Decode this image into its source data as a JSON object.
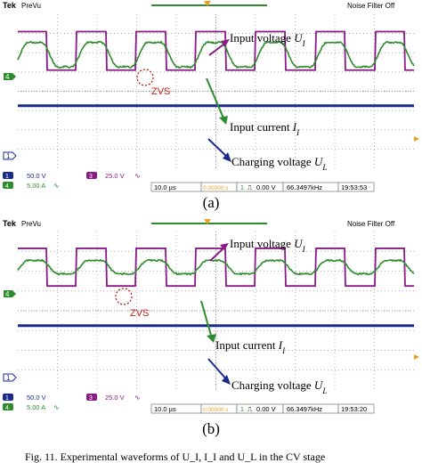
{
  "colors": {
    "voltage": "#8a1a86",
    "current": "#2e8b2e",
    "charging": "#1a2a8c",
    "trigger": "#f0a020",
    "zvs": "#c41a1a",
    "grid": "#9a9a9a"
  },
  "panels": [
    {
      "id": "a",
      "caption": "(a)",
      "header": {
        "brand": "Tek",
        "mode": "PreVu",
        "filter": "Noise Filter Off"
      },
      "channel_markers": {
        "ch4": "4",
        "ch1": "1"
      },
      "annotations": {
        "voltage": "Input voltage U_I",
        "current": "Input current I_I",
        "charging": "Charging voltage U_L",
        "zvs": "ZVS"
      },
      "footer": {
        "ch1_num": "1",
        "ch1_scale": "50.0 V",
        "ch4_num": "4",
        "ch4_scale": "5.00 A",
        "ch3_num": "3",
        "ch3_scale": "25.0 V",
        "timebase": "10.0 µs",
        "offset": "0.00000 s",
        "trigger_level": "0.00 V",
        "frequency": "66.3497kHz",
        "time": "19:53:53"
      }
    },
    {
      "id": "b",
      "caption": "(b)",
      "header": {
        "brand": "Tek",
        "mode": "PreVu",
        "filter": "Noise Filter Off"
      },
      "channel_markers": {
        "ch4": "4",
        "ch1": "1"
      },
      "annotations": {
        "voltage": "Input voltage U_I",
        "current": "Input current I_I",
        "charging": "Charging voltage U_L",
        "zvs": "ZVS"
      },
      "footer": {
        "ch1_num": "1",
        "ch1_scale": "50.0 V",
        "ch4_num": "4",
        "ch4_scale": "5.00 A",
        "ch3_num": "3",
        "ch3_scale": "25.0 V",
        "timebase": "10.0 µs",
        "offset": "0.00000 s",
        "trigger_level": "0.00 V",
        "frequency": "66.3497kHz",
        "time": "19:53:20"
      }
    }
  ],
  "caption_text": "Fig. 11. Experimental waveforms of U_I, I_I and U_L in the CV stage",
  "chart_data": [
    {
      "type": "line",
      "title": "",
      "panel": "(a)",
      "x_unit": "µs",
      "x_per_div": 10.0,
      "xlim": [
        -50,
        50
      ],
      "series": [
        {
          "name": "Input voltage U_I",
          "channel": 3,
          "volts_per_div": 25.0,
          "shape": "square wave",
          "amplitude_div": 1.0,
          "center_div": 2.1,
          "frequency_khz": 66.35
        },
        {
          "name": "Input current I_I",
          "channel": 4,
          "amps_per_div": 5.0,
          "shape": "quasi-sinusoidal",
          "amplitude_div": 0.75,
          "center_div": 1.9,
          "frequency_khz": 66.35
        },
        {
          "name": "Charging voltage U_L",
          "channel": 1,
          "volts_per_div": 50.0,
          "shape": "dc",
          "level_div": -0.75
        }
      ],
      "grid": true
    },
    {
      "type": "line",
      "title": "",
      "panel": "(b)",
      "x_unit": "µs",
      "x_per_div": 10.0,
      "xlim": [
        -50,
        50
      ],
      "series": [
        {
          "name": "Input voltage U_I",
          "channel": 3,
          "volts_per_div": 25.0,
          "shape": "square wave",
          "amplitude_div": 0.95,
          "center_div": 2.2,
          "frequency_khz": 66.35
        },
        {
          "name": "Input current I_I",
          "channel": 4,
          "amps_per_div": 5.0,
          "shape": "quasi-sinusoidal",
          "amplitude_div": 0.4,
          "center_div": 2.2,
          "frequency_khz": 66.35
        },
        {
          "name": "Charging voltage U_L",
          "channel": 1,
          "volts_per_div": 50.0,
          "shape": "dc",
          "level_div": -0.75
        }
      ],
      "grid": true
    }
  ]
}
